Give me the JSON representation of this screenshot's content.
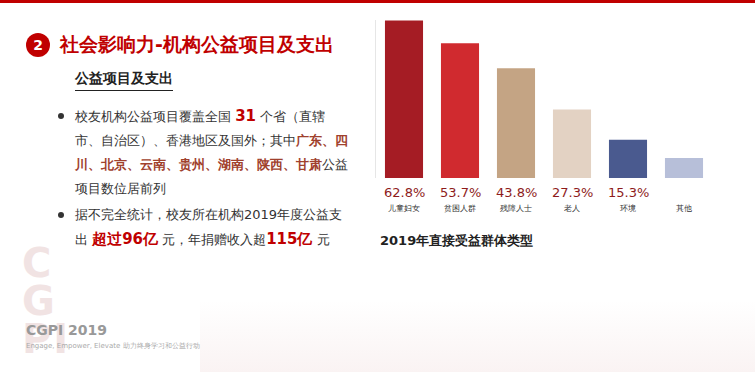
{
  "slide": {
    "section_number": "2",
    "title": "社会影响力-机构公益项目及支出",
    "subtitle": "公益项目及支出",
    "bullets": [
      [
        {
          "text": "校友机构公益项目覆盖全国 ",
          "style": "plain"
        },
        {
          "text": "31",
          "style": "number"
        },
        {
          "text": " 个省（直辖市、自治区）、香港地区及国外；其中",
          "style": "plain"
        },
        {
          "text": "广东、四川、北京、云南、贵州、湖南、陕西、甘肃",
          "style": "place"
        },
        {
          "text": "公益项目数位居前列",
          "style": "plain"
        }
      ],
      [
        {
          "text": "据不完全统计，校友所在机构2019年度公益支出 ",
          "style": "plain"
        },
        {
          "text": "超过96亿",
          "style": "number"
        },
        {
          "text": " 元，年捐赠收入超",
          "style": "plain"
        },
        {
          "text": "115亿",
          "style": "number"
        },
        {
          "text": " 元",
          "style": "plain"
        }
      ]
    ],
    "logo": "CGPI",
    "footer": {
      "brand": "CGPI 2019",
      "tagline": "Engage, Empower, Elevate 助力终身学习和公益行动"
    }
  },
  "chart_data": {
    "type": "bar",
    "title": "2019年直接受益群体类型",
    "categories": [
      "儿童妇女",
      "贫困人群",
      "残障人士",
      "老人",
      "环境",
      "其他"
    ],
    "values": [
      62.8,
      53.7,
      43.8,
      27.3,
      15.3,
      8
    ],
    "value_labels": [
      "62.8%",
      "53.7%",
      "43.8%",
      "27.3%",
      "15.3%",
      null
    ],
    "colors": [
      "#a51c24",
      "#d02a2f",
      "#c4a484",
      "#e3d2c3",
      "#4a5a8f",
      "#b7bfd9"
    ],
    "ylim": [
      0,
      63
    ],
    "grid": false,
    "data_labels": true,
    "tick_labels": "x"
  }
}
